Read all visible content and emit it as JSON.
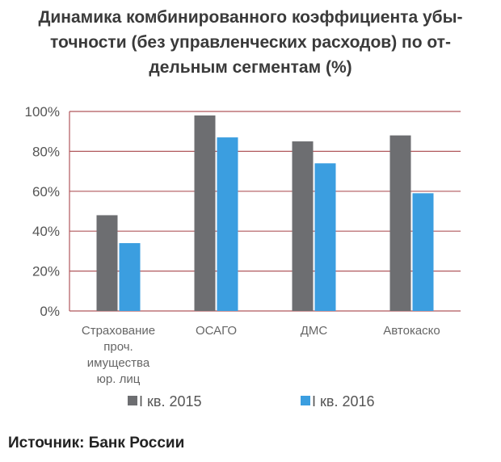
{
  "title_lines": [
    "Динамика комбинированного коэффициента убы-",
    "точности (без управленческих расходов) по от-",
    "дельным сегментам (%)"
  ],
  "source": "Источник: Банк России",
  "colors": {
    "series_2015": "#6d6e71",
    "series_2016": "#3b9ee0",
    "grid": "#b0585c"
  },
  "chart_data": {
    "type": "bar",
    "title": "Динамика комбинированного коэффициента убыточности (без управленческих расходов) по отдельным сегментам (%)",
    "categories": [
      [
        "Страхование",
        "проч.",
        "имущества",
        "юр. лиц"
      ],
      [
        "ОСАГО"
      ],
      [
        "ДМС"
      ],
      [
        "Автокаско"
      ]
    ],
    "series": [
      {
        "name": "I кв. 2015",
        "values": [
          48,
          98,
          85,
          88
        ]
      },
      {
        "name": "I кв. 2016",
        "values": [
          34,
          87,
          74,
          59
        ]
      }
    ],
    "ylim": [
      0,
      100
    ],
    "yticks": [
      0,
      20,
      40,
      60,
      80,
      100
    ],
    "ytick_labels": [
      "0%",
      "20%",
      "40%",
      "60%",
      "80%",
      "100%"
    ],
    "grid": true,
    "legend_position": "bottom",
    "xlabel": "",
    "ylabel": ""
  }
}
